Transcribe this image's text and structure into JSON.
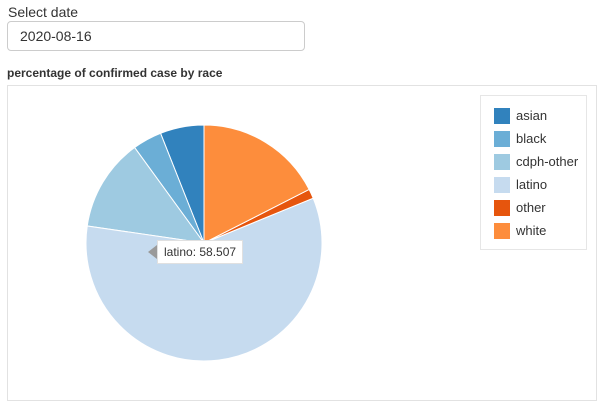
{
  "date_control": {
    "label": "Select date",
    "value": "2020-08-16"
  },
  "chart_title": "percentage of confirmed case by race",
  "tooltip": {
    "label": "latino",
    "value": "58.507"
  },
  "chart_data": {
    "type": "pie",
    "title": "percentage of confirmed case by race",
    "legend_position": "top-right",
    "categories": [
      "asian",
      "black",
      "cdph-other",
      "latino",
      "other",
      "white"
    ],
    "values": [
      6.0,
      4.0,
      12.7,
      58.507,
      1.3,
      17.5
    ],
    "colors": [
      "#3182bd",
      "#6baed6",
      "#9ecae1",
      "#c6dbef",
      "#e6550d",
      "#fd8d3c"
    ],
    "start_angle_deg": 90,
    "direction": "counterclockwise"
  }
}
